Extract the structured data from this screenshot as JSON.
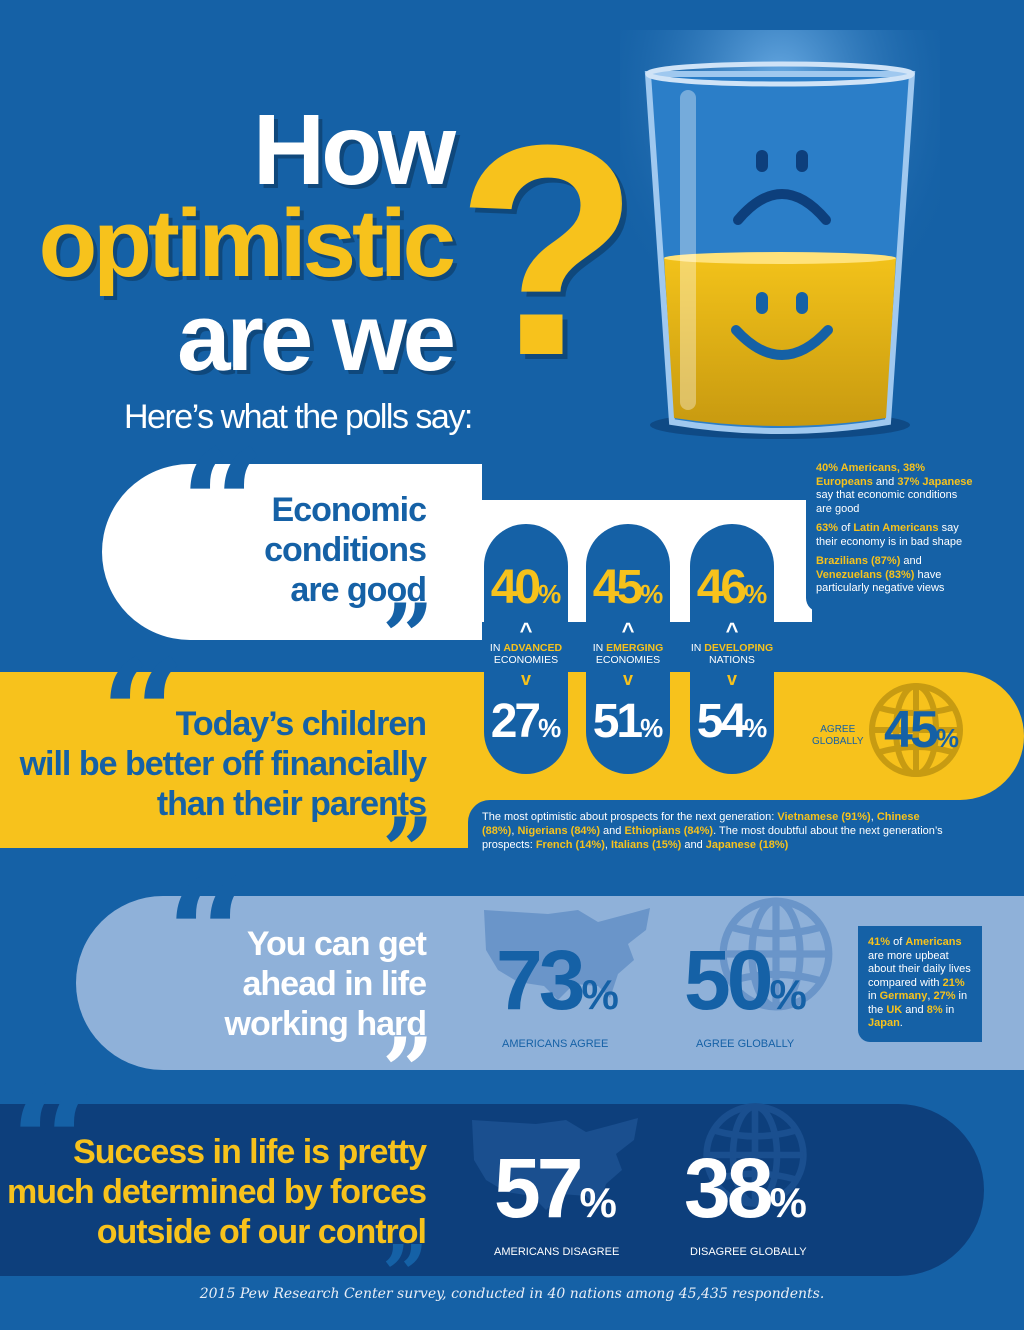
{
  "title": {
    "line1": "How",
    "line2": "optimistic",
    "line3": "are we",
    "mark": "?"
  },
  "subtitle": "Here’s what the polls say:",
  "quote_open": "“",
  "quote_close": "”",
  "colors": {
    "background": "#1561a6",
    "dark_blue": "#0d3f7c",
    "yellow": "#f7c21c",
    "light_blue": "#8fb1d9",
    "white": "#ffffff"
  },
  "icons": [
    "glass-icon",
    "sad-face-icon",
    "smile-face-icon",
    "globe-icon",
    "us-map-icon"
  ],
  "sections": {
    "economy": {
      "statement": [
        "Economic",
        "conditions",
        "are good"
      ],
      "note": {
        "p1": {
          "a": "40% Americans, 38% Europeans",
          "b": " and ",
          "c": "37% Japanese",
          "d": " say that economic conditions are good"
        },
        "p2": {
          "a": "63%",
          "b": " of ",
          "c": "Latin Americans",
          "d": " say their economy is in bad shape"
        },
        "p3": {
          "a": "Brazilians (87%)",
          "b": " and ",
          "c": "Venezuelans (83%)",
          "d": " have particularly negative views"
        }
      }
    },
    "children": {
      "statement": [
        "Today’s children",
        "will be better off financially",
        "than their parents"
      ],
      "global_label": [
        "AGREE",
        "GLOBALLY"
      ],
      "note": {
        "t1": "The most optimistic about prospects for the next generation: ",
        "h1": "Vietnamese (91%)",
        "t2": ", ",
        "h2": "Chinese (88%)",
        "t3": ", ",
        "h3": "Nigerians (84%)",
        "t4": " and ",
        "h4": "Ethiopians (84%)",
        "t5": ". The most doubtful about the next generation’s prospects: ",
        "h5": "French (14%)",
        "t6": ", ",
        "h6": "Italians (15%)",
        "t7": " and ",
        "h7": "Japanese (18%)"
      }
    },
    "hard_work": {
      "statement": [
        "You can get",
        "ahead in life",
        "working hard"
      ],
      "americans_label": "AMERICANS AGREE",
      "global_label": "AGREE GLOBALLY",
      "note": {
        "a": "41%",
        "b": " of ",
        "c": "Americans",
        "d": " are more upbeat about their daily lives compared with ",
        "e": "21%",
        "f": " in ",
        "g": "Germany",
        "h": ", ",
        "i": "27%",
        "j": " in the ",
        "k": "UK",
        "l": " and ",
        "m": "8%",
        "n": " in ",
        "o": "Japan",
        "q": "."
      }
    },
    "forces": {
      "statement": [
        "Success in life is pretty",
        "much determined by forces",
        "outside of our control"
      ],
      "americans_label": "AMERICANS DISAGREE",
      "global_label": "DISAGREE GLOBALLY"
    }
  },
  "footer": "2015 Pew Research Center survey, conducted in 40 nations among 45,435 respondents.",
  "chart_data": [
    {
      "type": "table",
      "title": "Economic conditions are good / Today’s children will be better off financially than their parents",
      "categories": [
        "ADVANCED",
        "EMERGING",
        "DEVELOPING"
      ],
      "category_prefix": "IN",
      "category_suffix": [
        "ECONOMIES",
        "ECONOMIES",
        "NATIONS"
      ],
      "unit": "%",
      "series": [
        {
          "name": "Economic conditions are good",
          "values": [
            40,
            45,
            46
          ]
        },
        {
          "name": "Today’s children will be better off financially than their parents",
          "values": [
            27,
            51,
            54
          ]
        }
      ],
      "global_children": 45
    },
    {
      "type": "table",
      "title": "You can get ahead in life working hard",
      "unit": "%",
      "values": {
        "americans": 73,
        "global": 50
      }
    },
    {
      "type": "table",
      "title": "Success in life is pretty much determined by forces outside of our control",
      "unit": "%",
      "values": {
        "americans": 57,
        "global": 38
      }
    }
  ]
}
